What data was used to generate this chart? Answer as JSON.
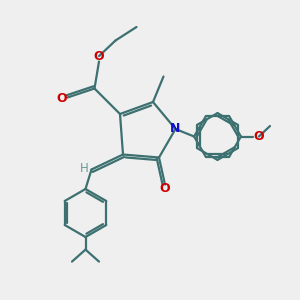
{
  "bg_color": "#EFEFEF",
  "bond_color": "#3D7070",
  "n_color": "#1010CC",
  "o_color": "#CC0000",
  "h_color": "#6A9A9A",
  "line_width": 1.6,
  "figsize": [
    3.0,
    3.0
  ],
  "dpi": 100,
  "xlim": [
    0,
    10
  ],
  "ylim": [
    0,
    10
  ],
  "scale": 1.0
}
